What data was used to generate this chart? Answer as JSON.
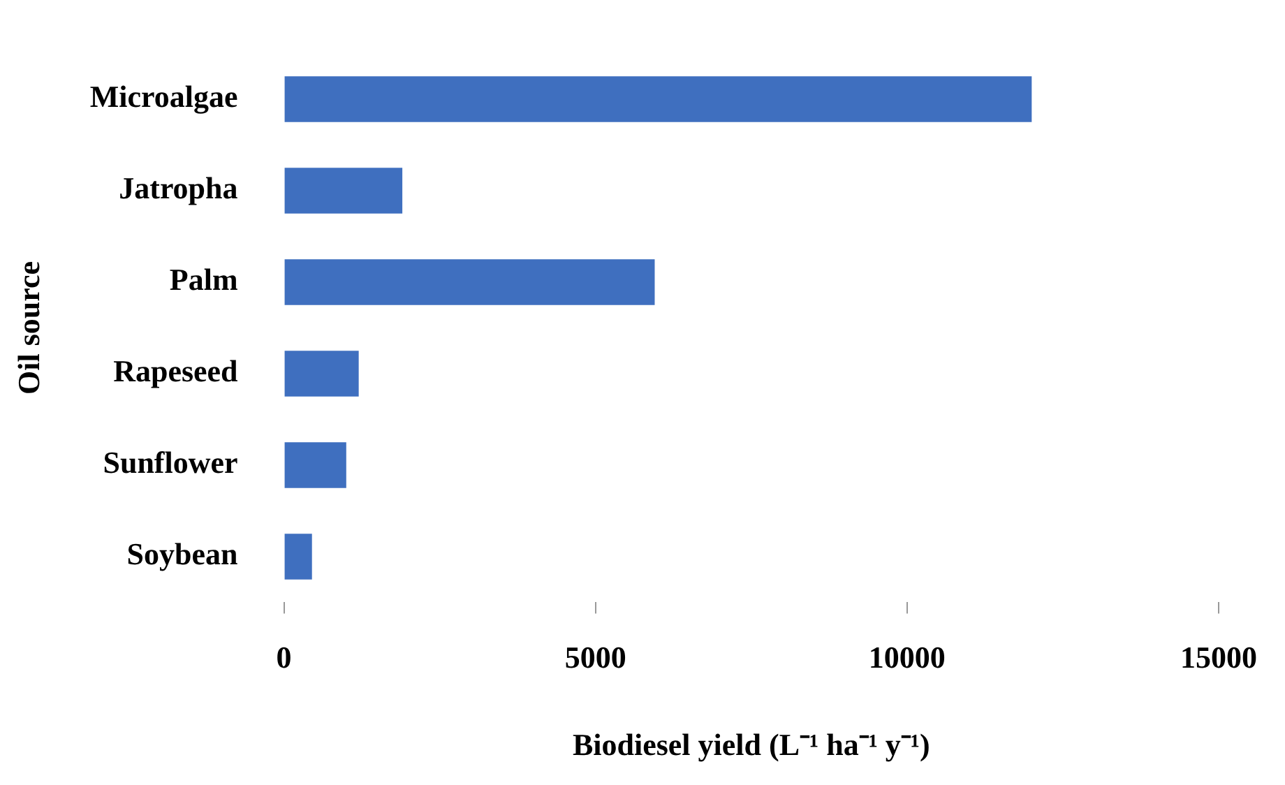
{
  "chart_data": {
    "type": "bar",
    "orientation": "horizontal",
    "xlabel": "Biodiesel yield (L⁻¹ ha⁻¹ y⁻¹)",
    "ylabel": "Oil source",
    "categories": [
      "Microalgae",
      "Jatropha",
      "Palm",
      "Rapeseed",
      "Sunflower",
      "Soybean"
    ],
    "values": [
      12000,
      1900,
      5950,
      1200,
      1000,
      450
    ],
    "color": "#3f6fbf",
    "xlim": [
      0,
      15000
    ],
    "xticks": [
      0,
      5000,
      10000,
      15000
    ],
    "grid": false,
    "legend": false
  }
}
